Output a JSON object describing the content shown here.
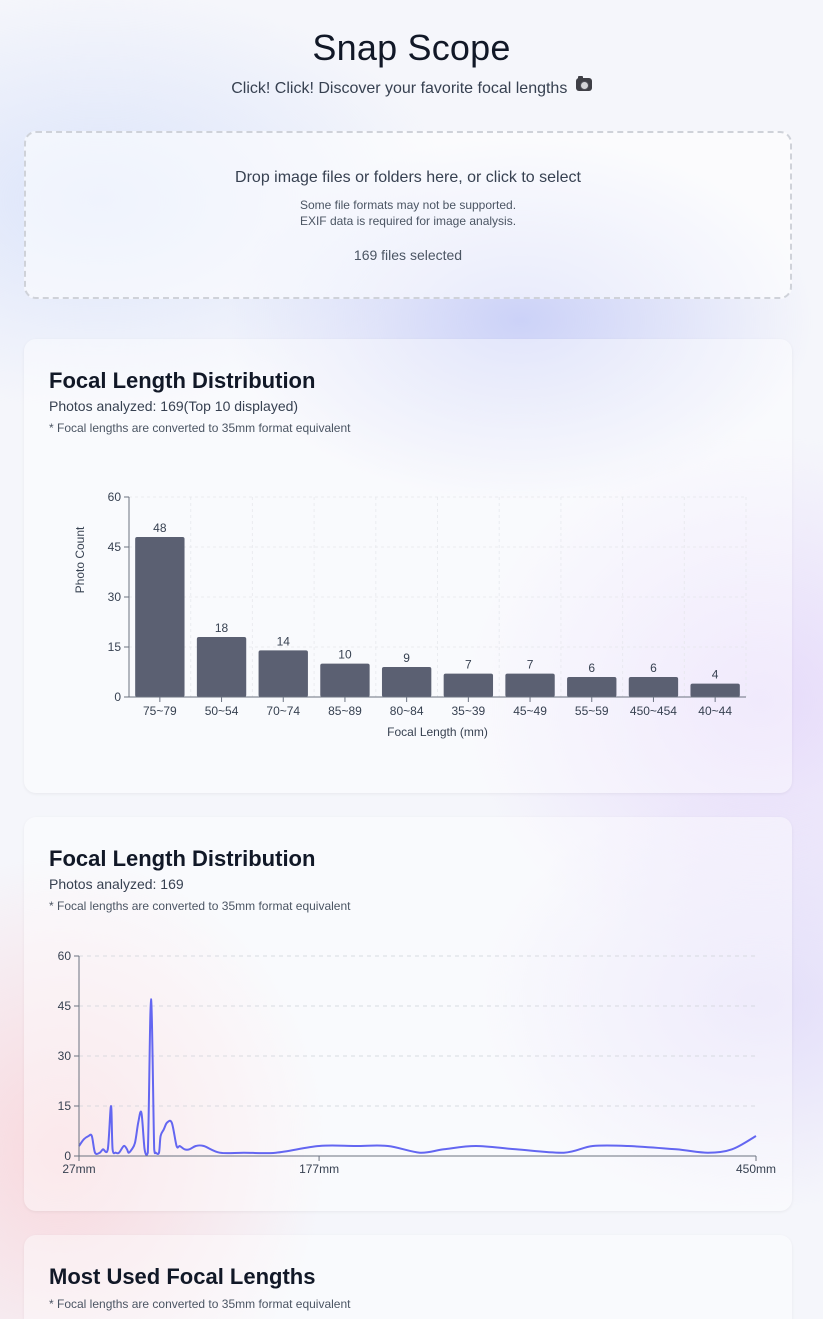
{
  "header": {
    "title": "Snap Scope",
    "subtitle": "Click! Click! Discover your favorite focal lengths",
    "subtitle_icon": "camera-icon"
  },
  "dropzone": {
    "instruction": "Drop image files or folders here, or click to select",
    "note1": "Some file formats may not be supported.",
    "note2": "EXIF data is required for image analysis.",
    "status": "169 files selected"
  },
  "bar_card": {
    "title": "Focal Length Distribution",
    "subtitle": "Photos analyzed: 169(Top 10 displayed)",
    "note": "* Focal lengths are converted to 35mm format equivalent"
  },
  "line_card": {
    "title": "Focal Length Distribution",
    "subtitle": "Photos analyzed: 169",
    "note": "* Focal lengths are converted to 35mm format equivalent"
  },
  "most_used_card": {
    "title": "Most Used Focal Lengths",
    "note": "* Focal lengths are converted to 35mm format equivalent"
  },
  "colors": {
    "bar": "#5b6072",
    "line": "#6366f1",
    "axis": "#6b7280"
  },
  "chart_data": [
    {
      "type": "bar",
      "categories": [
        "75~79",
        "50~54",
        "70~74",
        "85~89",
        "80~84",
        "35~39",
        "45~49",
        "55~59",
        "450~454",
        "40~44"
      ],
      "values": [
        48,
        18,
        14,
        10,
        9,
        7,
        7,
        6,
        6,
        4
      ],
      "xlabel": "Focal Length (mm)",
      "ylabel": "Photo Count",
      "ylim": [
        0,
        60
      ],
      "yticks": [
        0,
        15,
        30,
        45,
        60
      ],
      "grid": true
    },
    {
      "type": "line",
      "xlim": [
        27,
        450
      ],
      "xticks": [
        "27mm",
        "177mm",
        "450mm"
      ],
      "xtick_values": [
        27,
        177,
        450
      ],
      "ylim": [
        0,
        60
      ],
      "yticks": [
        0,
        15,
        30,
        45,
        60
      ],
      "grid": true,
      "x": [
        27,
        30,
        33,
        35,
        37,
        40,
        42,
        45,
        47,
        48,
        50,
        52,
        55,
        57,
        58,
        60,
        62,
        64,
        66,
        68,
        70,
        72,
        74,
        75,
        77,
        78,
        80,
        82,
        85,
        88,
        90,
        93,
        96,
        100,
        105,
        115,
        130,
        150,
        177,
        200,
        220,
        240,
        255,
        275,
        300,
        330,
        348,
        370,
        400,
        420,
        435,
        450
      ],
      "y": [
        3,
        5,
        6,
        6,
        1,
        1,
        2,
        2,
        15,
        2,
        1,
        1,
        3,
        2,
        1,
        2,
        4,
        10,
        13,
        2,
        1,
        47,
        2,
        1,
        1,
        6,
        8,
        10,
        10,
        3,
        3,
        2,
        2,
        3,
        3,
        1,
        1,
        1,
        3,
        3,
        3,
        1,
        2,
        3,
        2,
        1,
        3,
        3,
        2,
        1,
        2,
        6
      ]
    }
  ]
}
